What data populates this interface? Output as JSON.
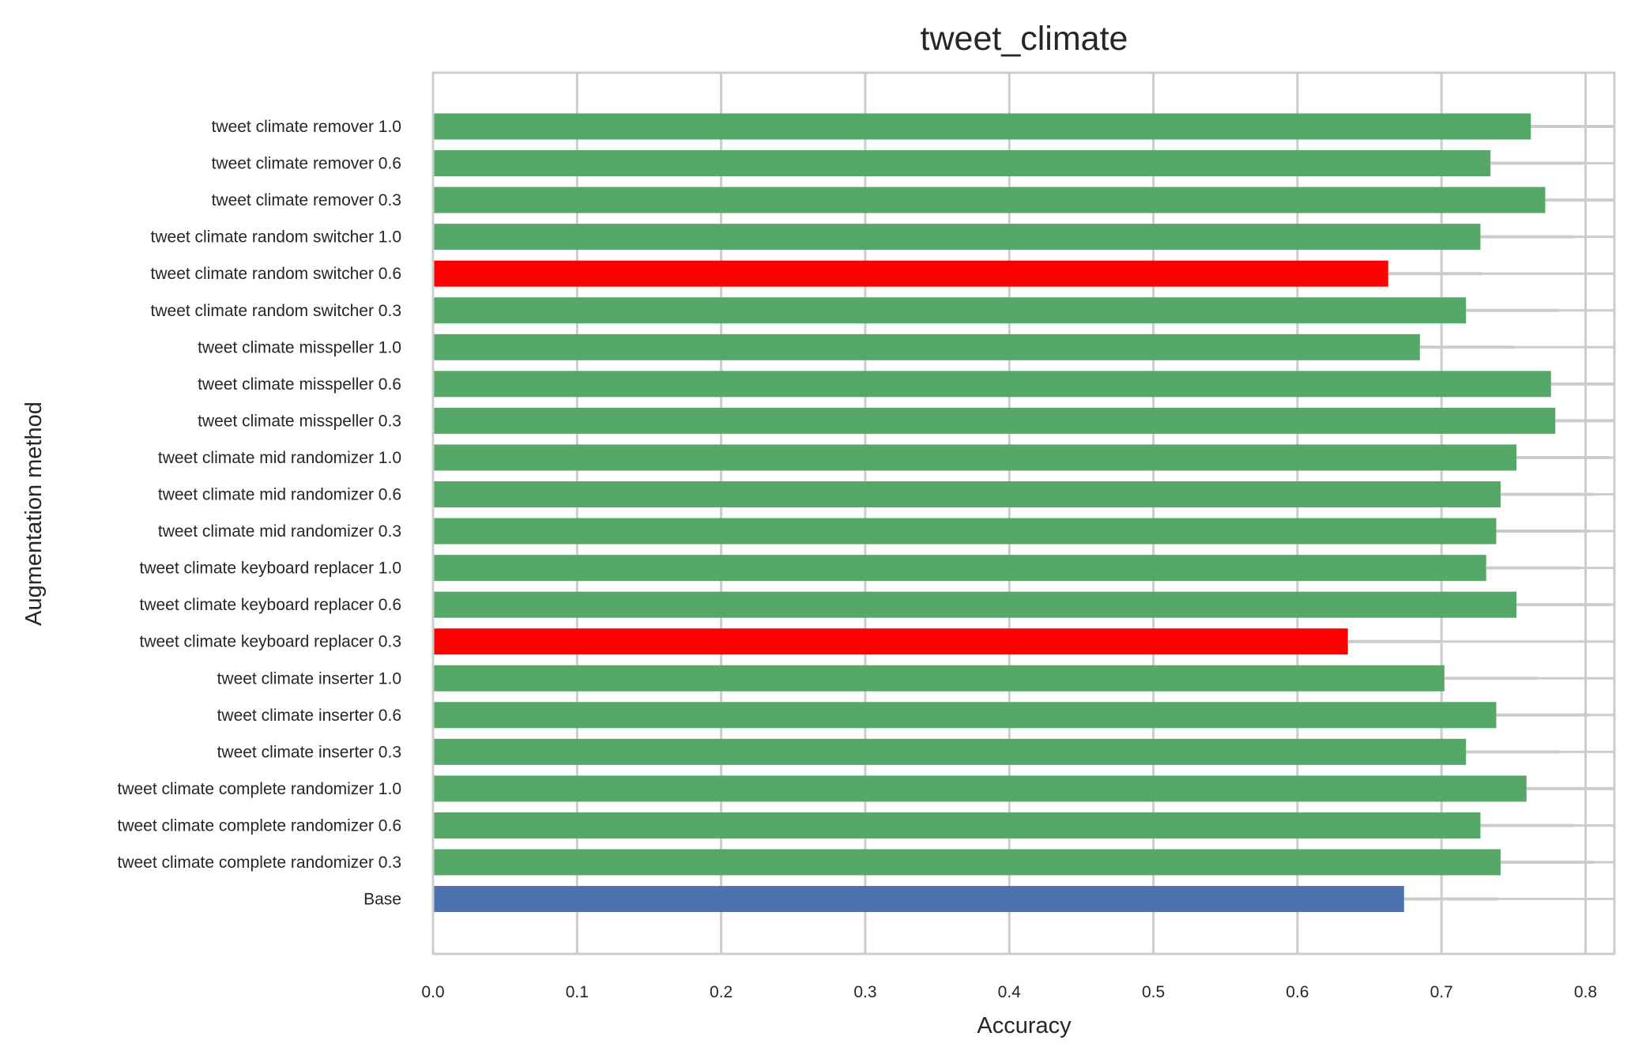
{
  "chart_data": {
    "type": "bar",
    "orientation": "horizontal",
    "title": "tweet_climate",
    "xlabel": "Accuracy",
    "ylabel": "Augmentation method",
    "xlim": [
      0,
      0.82
    ],
    "xticks": [
      "0.0",
      "0.1",
      "0.2",
      "0.3",
      "0.4",
      "0.5",
      "0.6",
      "0.7",
      "0.8"
    ],
    "grid": true,
    "colors": {
      "above_base": "#55a868",
      "below_base": "#ff0000",
      "base": "#4c72b0",
      "grid": "#cccccc"
    },
    "categories": [
      "tweet climate remover 1.0",
      "tweet climate remover 0.6",
      "tweet climate remover 0.3",
      "tweet climate random switcher 1.0",
      "tweet climate random switcher 0.6",
      "tweet climate random switcher 0.3",
      "tweet climate misspeller 1.0",
      "tweet climate misspeller 0.6",
      "tweet climate misspeller 0.3",
      "tweet climate mid randomizer 1.0",
      "tweet climate mid randomizer 0.6",
      "tweet climate mid randomizer 0.3",
      "tweet climate keyboard replacer 1.0",
      "tweet climate keyboard replacer 0.6",
      "tweet climate keyboard replacer 0.3",
      "tweet climate inserter 1.0",
      "tweet climate inserter 0.6",
      "tweet climate inserter 0.3",
      "tweet climate complete randomizer 1.0",
      "tweet climate complete randomizer 0.6",
      "tweet climate complete randomizer 0.3",
      "Base"
    ],
    "values": [
      0.762,
      0.734,
      0.772,
      0.727,
      0.663,
      0.717,
      0.685,
      0.776,
      0.779,
      0.752,
      0.741,
      0.738,
      0.731,
      0.752,
      0.635,
      0.702,
      0.738,
      0.717,
      0.759,
      0.727,
      0.741,
      0.674
    ],
    "bar_colors": [
      "above_base",
      "above_base",
      "above_base",
      "above_base",
      "below_base",
      "above_base",
      "above_base",
      "above_base",
      "above_base",
      "above_base",
      "above_base",
      "above_base",
      "above_base",
      "above_base",
      "below_base",
      "above_base",
      "above_base",
      "above_base",
      "above_base",
      "above_base",
      "above_base",
      "base"
    ]
  }
}
